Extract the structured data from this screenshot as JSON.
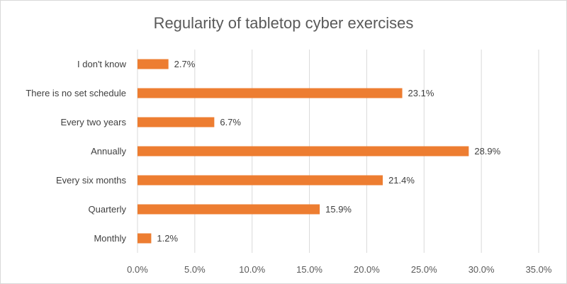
{
  "chart_data": {
    "type": "bar",
    "orientation": "horizontal",
    "title": "Regularity of tabletop cyber exercises",
    "categories": [
      "I don't know",
      "There is no set schedule",
      "Every two years",
      "Annually",
      "Every six months",
      "Quarterly",
      "Monthly"
    ],
    "values": [
      2.7,
      23.1,
      6.7,
      28.9,
      21.4,
      15.9,
      1.2
    ],
    "data_labels": [
      "2.7%",
      "23.1%",
      "6.7%",
      "28.9%",
      "21.4%",
      "15.9%",
      "1.2%"
    ],
    "xlim": [
      0,
      35
    ],
    "x_ticks": [
      "0.0%",
      "5.0%",
      "10.0%",
      "15.0%",
      "20.0%",
      "25.0%",
      "30.0%",
      "35.0%"
    ],
    "xlabel": "",
    "ylabel": "",
    "grid": "vertical",
    "legend": "none",
    "bar_color": "#ED7D31"
  }
}
